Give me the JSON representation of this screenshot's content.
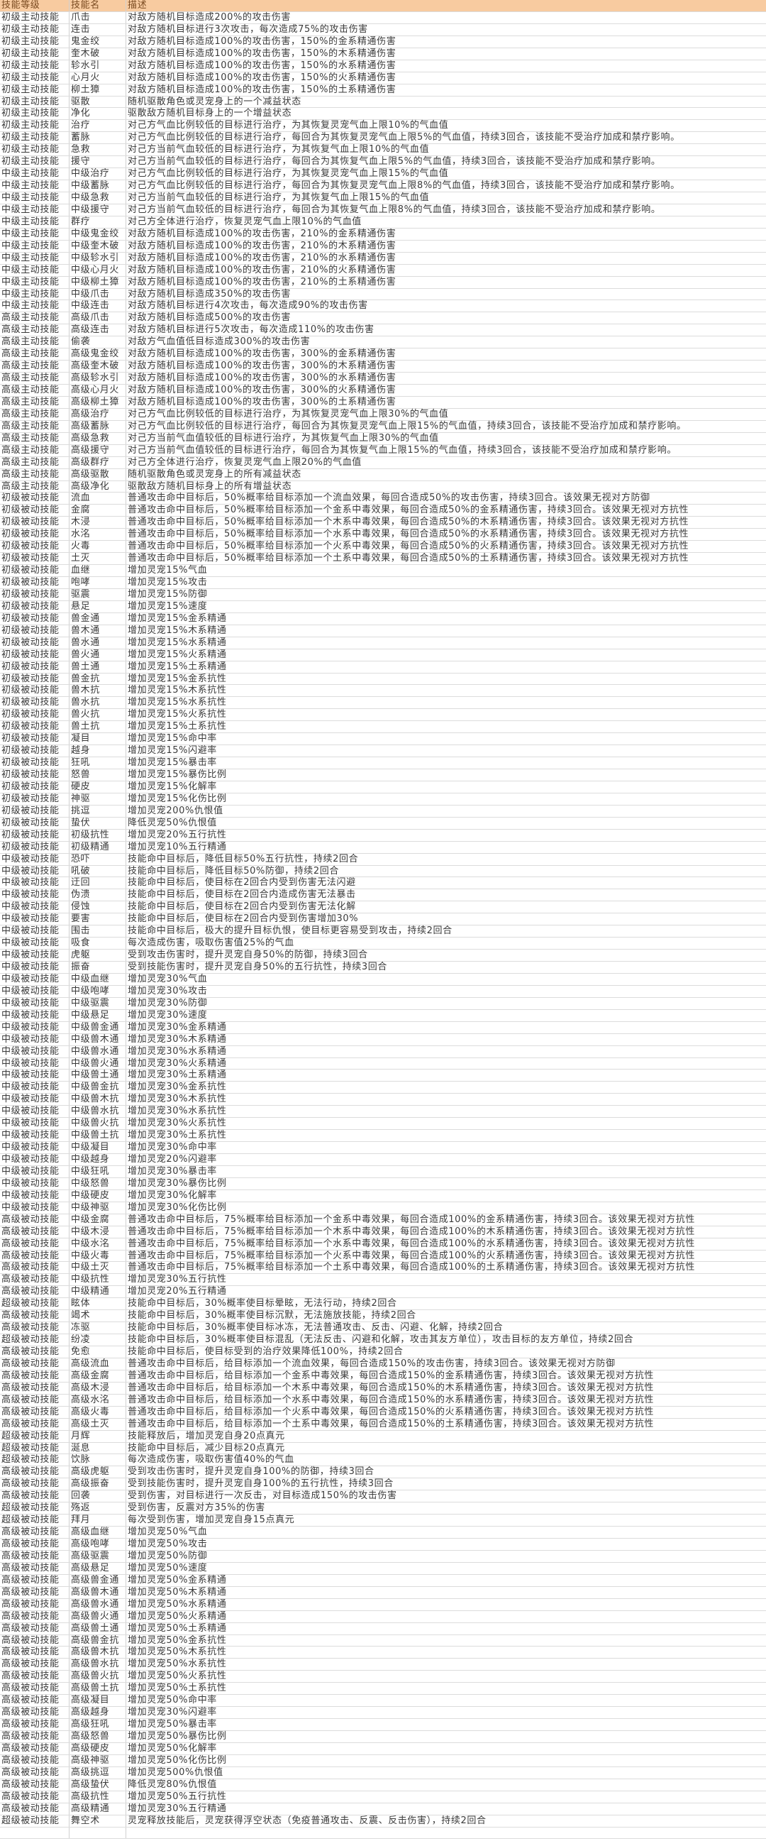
{
  "header": {
    "level": "技能等级",
    "name": "技能名",
    "desc": "描述"
  },
  "colors": {
    "header_bg": "#f8cba0",
    "grid": "#dcdcdc"
  },
  "rows": [
    [
      "初级主动技能",
      "爪击",
      "对敌方随机目标造成200%的攻击伤害"
    ],
    [
      "初级主动技能",
      "连击",
      "对敌方随机目标进行3次攻击，每次造成75%的攻击伤害"
    ],
    [
      "初级主动技能",
      "鬼金绞",
      "对敌方随机目标造成100%的攻击伤害，150%的金系精通伤害"
    ],
    [
      "初级主动技能",
      "奎木破",
      "对敌方随机目标造成100%的攻击伤害，150%的木系精通伤害"
    ],
    [
      "初级主动技能",
      "轸水引",
      "对敌方随机目标造成100%的攻击伤害，150%的水系精通伤害"
    ],
    [
      "初级主动技能",
      "心月火",
      "对敌方随机目标造成100%的攻击伤害，150%的火系精通伤害"
    ],
    [
      "初级主动技能",
      "柳土獐",
      "对敌方随机目标造成100%的攻击伤害，150%的土系精通伤害"
    ],
    [
      "初级主动技能",
      "驱散",
      "随机驱散角色或灵宠身上的一个减益状态"
    ],
    [
      "初级主动技能",
      "净化",
      "驱散敌方随机目标身上的一个增益状态"
    ],
    [
      "初级主动技能",
      "治疗",
      "对己方气血比例较低的目标进行治疗，为其恢复灵宠气血上限10%的气血值"
    ],
    [
      "初级主动技能",
      "蓄脉",
      "对己方气血比例较低的目标进行治疗，每回合为其恢复灵宠气血上限5%的气血值，持续3回合，该技能不受治疗加成和禁疗影响。"
    ],
    [
      "初级主动技能",
      "急救",
      "对己方当前气血较低的目标进行治疗，为其恢复气血上限10%的气血值"
    ],
    [
      "初级主动技能",
      "援守",
      "对己方当前气血较低的目标进行治疗，每回合为其恢复气血上限5%的气血值，持续3回合，该技能不受治疗加成和禁疗影响。"
    ],
    [
      "中级主动技能",
      "中级治疗",
      "对己方气血比例较低的目标进行治疗，为其恢复灵宠气血上限15%的气血值"
    ],
    [
      "中级主动技能",
      "中级蓄脉",
      "对己方气血比例较低的目标进行治疗，每回合为其恢复灵宠气血上限8%的气血值，持续3回合，该技能不受治疗加成和禁疗影响。"
    ],
    [
      "中级主动技能",
      "中级急救",
      "对己方当前气血较低的目标进行治疗，为其恢复气血上限15%的气血值"
    ],
    [
      "中级主动技能",
      "中级援守",
      "对己方当前气血较低的目标进行治疗，每回合为其恢复气血上限8%的气血值，持续3回合，该技能不受治疗加成和禁疗影响。"
    ],
    [
      "中级主动技能",
      "群疗",
      "对己方全体进行治疗，恢复灵宠气血上限10%的气血值"
    ],
    [
      "中级主动技能",
      "中级鬼金绞",
      "对敌方随机目标造成100%的攻击伤害，210%的金系精通伤害"
    ],
    [
      "中级主动技能",
      "中级奎木破",
      "对敌方随机目标造成100%的攻击伤害，210%的木系精通伤害"
    ],
    [
      "中级主动技能",
      "中级轸水引",
      "对敌方随机目标造成100%的攻击伤害，210%的水系精通伤害"
    ],
    [
      "中级主动技能",
      "中级心月火",
      "对敌方随机目标造成100%的攻击伤害，210%的火系精通伤害"
    ],
    [
      "中级主动技能",
      "中级柳土獐",
      "对敌方随机目标造成100%的攻击伤害，210%的土系精通伤害"
    ],
    [
      "中级主动技能",
      "中级爪击",
      "对敌方随机目标造成350%的攻击伤害"
    ],
    [
      "中级主动技能",
      "中级连击",
      "对敌方随机目标进行4次攻击，每次造成90%的攻击伤害"
    ],
    [
      "高级主动技能",
      "高级爪击",
      "对敌方随机目标造成500%的攻击伤害"
    ],
    [
      "高级主动技能",
      "高级连击",
      "对敌方随机目标进行5次攻击，每次造成110%的攻击伤害"
    ],
    [
      "高级主动技能",
      "偷袭",
      "对敌方气血值低目标造成300%的攻击伤害"
    ],
    [
      "高级主动技能",
      "高级鬼金绞",
      "对敌方随机目标造成100%的攻击伤害，300%的金系精通伤害"
    ],
    [
      "高级主动技能",
      "高级奎木破",
      "对敌方随机目标造成100%的攻击伤害，300%的木系精通伤害"
    ],
    [
      "高级主动技能",
      "高级轸水引",
      "对敌方随机目标造成100%的攻击伤害，300%的水系精通伤害"
    ],
    [
      "高级主动技能",
      "高级心月火",
      "对敌方随机目标造成100%的攻击伤害，300%的火系精通伤害"
    ],
    [
      "高级主动技能",
      "高级柳土獐",
      "对敌方随机目标造成100%的攻击伤害，300%的土系精通伤害"
    ],
    [
      "高级主动技能",
      "高级治疗",
      "对己方气血比例较低的目标进行治疗，为其恢复灵宠气血上限30%的气血值"
    ],
    [
      "高级主动技能",
      "高级蓄脉",
      "对己方气血比例较低的目标进行治疗，每回合为其恢复灵宠气血上限15%的气血值，持续3回合，该技能不受治疗加成和禁疗影响。"
    ],
    [
      "高级主动技能",
      "高级急救",
      "对己方当前气血值较低的目标进行治疗，为其恢复气血上限30%的气血值"
    ],
    [
      "高级主动技能",
      "高级援守",
      "对己方当前气血值较低的目标进行治疗，每回合为其恢复气血上限15%的气血值，持续3回合，该技能不受治疗加成和禁疗影响。"
    ],
    [
      "高级主动技能",
      "高级群疗",
      "对己方全体进行治疗，恢复灵宠气血上限20%的气血值"
    ],
    [
      "高级主动技能",
      "高级驱散",
      "随机驱散角色或灵宠身上的所有减益状态"
    ],
    [
      "高级主动技能",
      "高级净化",
      "驱散敌方随机目标身上的所有增益状态"
    ],
    [
      "初级被动技能",
      "流血",
      "普通攻击命中目标后，50%概率给目标添加一个流血效果，每回合造成50%的攻击伤害，持续3回合。该效果无视对方防御"
    ],
    [
      "初级被动技能",
      "金腐",
      "普通攻击命中目标后，50%概率给目标添加一个金系中毒效果，每回合造成50%的金系精通伤害，持续3回合。该效果无视对方抗性"
    ],
    [
      "初级被动技能",
      "木浸",
      "普通攻击命中目标后，50%概率给目标添加一个木系中毒效果，每回合造成50%的木系精通伤害，持续3回合。该效果无视对方抗性"
    ],
    [
      "初级被动技能",
      "水洺",
      "普通攻击命中目标后，50%概率给目标添加一个水系中毒效果，每回合造成50%的水系精通伤害，持续3回合。该效果无视对方抗性"
    ],
    [
      "初级被动技能",
      "火毒",
      "普通攻击命中目标后，50%概率给目标添加一个火系中毒效果，每回合造成50%的火系精通伤害，持续3回合。该效果无视对方抗性"
    ],
    [
      "初级被动技能",
      "土灭",
      "普通攻击命中目标后，50%概率给目标添加一个土系中毒效果，每回合造成50%的土系精通伤害，持续3回合。该效果无视对方抗性"
    ],
    [
      "初级被动技能",
      "血继",
      "增加灵宠15%气血"
    ],
    [
      "初级被动技能",
      "咆哮",
      "增加灵宠15%攻击"
    ],
    [
      "初级被动技能",
      "驱震",
      "增加灵宠15%防御"
    ],
    [
      "初级被动技能",
      "悬足",
      "增加灵宠15%速度"
    ],
    [
      "初级被动技能",
      "兽金通",
      "增加灵宠15%金系精通"
    ],
    [
      "初级被动技能",
      "兽木通",
      "增加灵宠15%木系精通"
    ],
    [
      "初级被动技能",
      "兽水通",
      "增加灵宠15%水系精通"
    ],
    [
      "初级被动技能",
      "兽火通",
      "增加灵宠15%火系精通"
    ],
    [
      "初级被动技能",
      "兽土通",
      "增加灵宠15%土系精通"
    ],
    [
      "初级被动技能",
      "兽金抗",
      "增加灵宠15%金系抗性"
    ],
    [
      "初级被动技能",
      "兽木抗",
      "增加灵宠15%木系抗性"
    ],
    [
      "初级被动技能",
      "兽水抗",
      "增加灵宠15%水系抗性"
    ],
    [
      "初级被动技能",
      "兽火抗",
      "增加灵宠15%火系抗性"
    ],
    [
      "初级被动技能",
      "兽土抗",
      "增加灵宠15%土系抗性"
    ],
    [
      "初级被动技能",
      "凝目",
      "增加灵宠15%命中率"
    ],
    [
      "初级被动技能",
      "越身",
      "增加灵宠15%闪避率"
    ],
    [
      "初级被动技能",
      "狂吼",
      "增加灵宠15%暴击率"
    ],
    [
      "初级被动技能",
      "怒兽",
      "增加灵宠15%暴伤比例"
    ],
    [
      "初级被动技能",
      "硬皮",
      "增加灵宠15%化解率"
    ],
    [
      "初级被动技能",
      "神驱",
      "增加灵宠15%化伤比例"
    ],
    [
      "初级被动技能",
      "挑逗",
      "增加灵宠200%仇恨值"
    ],
    [
      "初级被动技能",
      "蛰伏",
      "降低灵宠50%仇恨值"
    ],
    [
      "初级被动技能",
      "初级抗性",
      "增加灵宠20%五行抗性"
    ],
    [
      "初级被动技能",
      "初级精通",
      "增加灵宠10%五行精通"
    ],
    [
      "中级被动技能",
      "恐吓",
      "技能命中目标后，降低目标50%五行抗性，持续2回合"
    ],
    [
      "中级被动技能",
      "吼破",
      "技能命中目标后，降低目标50%防御，持续2回合"
    ],
    [
      "中级被动技能",
      "迂回",
      "技能命中目标后，使目标在2回合内受到伤害无法闪避"
    ],
    [
      "中级被动技能",
      "伪溃",
      "技能命中目标后，使目标在2回合内造成伤害无法暴击"
    ],
    [
      "中级被动技能",
      "侵蚀",
      "技能命中目标后，使目标在2回合内受到伤害无法化解"
    ],
    [
      "中级被动技能",
      "要害",
      "技能命中目标后，使目标在2回合内受到伤害增加30%"
    ],
    [
      "中级被动技能",
      "围击",
      "技能命中目标后，极大的提升目标仇恨，使目标更容易受到攻击，持续2回合"
    ],
    [
      "中级被动技能",
      "吸食",
      "每次造成伤害，吸取伤害值25%的气血"
    ],
    [
      "中级被动技能",
      "虎躯",
      "受到攻击伤害时，提升灵宠自身50%的防御，持续3回合"
    ],
    [
      "中级被动技能",
      "振奋",
      "受到技能伤害时，提升灵宠自身50%的五行抗性，持续3回合"
    ],
    [
      "中级被动技能",
      "中级血继",
      "增加灵宠30%气血"
    ],
    [
      "中级被动技能",
      "中级咆哮",
      "增加灵宠30%攻击"
    ],
    [
      "中级被动技能",
      "中级驱震",
      "增加灵宠30%防御"
    ],
    [
      "中级被动技能",
      "中级悬足",
      "增加灵宠30%速度"
    ],
    [
      "中级被动技能",
      "中级兽金通",
      "增加灵宠30%金系精通"
    ],
    [
      "中级被动技能",
      "中级兽木通",
      "增加灵宠30%木系精通"
    ],
    [
      "中级被动技能",
      "中级兽水通",
      "增加灵宠30%水系精通"
    ],
    [
      "中级被动技能",
      "中级兽火通",
      "增加灵宠30%火系精通"
    ],
    [
      "中级被动技能",
      "中级兽土通",
      "增加灵宠30%土系精通"
    ],
    [
      "中级被动技能",
      "中级兽金抗",
      "增加灵宠30%金系抗性"
    ],
    [
      "中级被动技能",
      "中级兽木抗",
      "增加灵宠30%木系抗性"
    ],
    [
      "中级被动技能",
      "中级兽水抗",
      "增加灵宠30%水系抗性"
    ],
    [
      "中级被动技能",
      "中级兽火抗",
      "增加灵宠30%火系抗性"
    ],
    [
      "中级被动技能",
      "中级兽土抗",
      "增加灵宠30%土系抗性"
    ],
    [
      "中级被动技能",
      "中级凝目",
      "增加灵宠30%命中率"
    ],
    [
      "中级被动技能",
      "中级越身",
      "增加灵宠20%闪避率"
    ],
    [
      "中级被动技能",
      "中级狂吼",
      "增加灵宠30%暴击率"
    ],
    [
      "中级被动技能",
      "中级怒兽",
      "增加灵宠30%暴伤比例"
    ],
    [
      "中级被动技能",
      "中级硬皮",
      "增加灵宠30%化解率"
    ],
    [
      "中级被动技能",
      "中级神驱",
      "增加灵宠30%化伤比例"
    ],
    [
      "高级被动技能",
      "中级金腐",
      "普通攻击命中目标后，75%概率给目标添加一个金系中毒效果，每回合造成100%的金系精通伤害，持续3回合。该效果无视对方抗性"
    ],
    [
      "高级被动技能",
      "中级木浸",
      "普通攻击命中目标后，75%概率给目标添加一个木系中毒效果，每回合造成100%的木系精通伤害，持续3回合。该效果无视对方抗性"
    ],
    [
      "高级被动技能",
      "中级水洺",
      "普通攻击命中目标后，75%概率给目标添加一个水系中毒效果，每回合造成100%的水系精通伤害，持续3回合。该效果无视对方抗性"
    ],
    [
      "高级被动技能",
      "中级火毒",
      "普通攻击命中目标后，75%概率给目标添加一个火系中毒效果，每回合造成100%的火系精通伤害，持续3回合。该效果无视对方抗性"
    ],
    [
      "高级被动技能",
      "中级土灭",
      "普通攻击命中目标后，75%概率给目标添加一个土系中毒效果，每回合造成100%的土系精通伤害，持续3回合。该效果无视对方抗性"
    ],
    [
      "高级被动技能",
      "中级抗性",
      "增加灵宠30%五行抗性"
    ],
    [
      "高级被动技能",
      "中级精通",
      "增加灵宠20%五行精通"
    ],
    [
      "超级被动技能",
      "眩体",
      "技能命中目标后，30%概率使目标晕眩，无法行动，持续2回合"
    ],
    [
      "高级被动技能",
      "竭术",
      "技能命中目标后，30%概率使目标沉默，无法施放技能，持续2回合"
    ],
    [
      "高级被动技能",
      "冻驱",
      "技能命中目标后，30%概率使目标冰冻，无法普通攻击、反击、闪避、化解，持续2回合"
    ],
    [
      "超级被动技能",
      "纷凌",
      "技能命中目标后，30%概率使目标混乱（无法反击、闪避和化解，攻击其友方单位），攻击目标的友方单位，持续2回合"
    ],
    [
      "高级被动技能",
      "免愈",
      "技能命中目标后，使目标受到的治疗效果降低100%，持续2回合"
    ],
    [
      "高级被动技能",
      "高级流血",
      "普通攻击命中目标后，给目标添加一个流血效果，每回合造成150%的攻击伤害，持续3回合。该效果无视对方防御"
    ],
    [
      "高级被动技能",
      "高级金腐",
      "普通攻击命中目标后，给目标添加一个金系中毒效果，每回合造成150%的金系精通伤害，持续3回合。该效果无视对方抗性"
    ],
    [
      "高级被动技能",
      "高级木浸",
      "普通攻击命中目标后，给目标添加一个木系中毒效果，每回合造成150%的木系精通伤害，持续3回合。该效果无视对方抗性"
    ],
    [
      "高级被动技能",
      "高级水洺",
      "普通攻击命中目标后，给目标添加一个水系中毒效果，每回合造成150%的水系精通伤害，持续3回合。该效果无视对方抗性"
    ],
    [
      "高级被动技能",
      "高级火毒",
      "普通攻击命中目标后，给目标添加一个火系中毒效果，每回合造成150%的火系精通伤害，持续3回合。该效果无视对方抗性"
    ],
    [
      "高级被动技能",
      "高级土灭",
      "普通攻击命中目标后，给目标添加一个土系中毒效果，每回合造成150%的土系精通伤害，持续3回合。该效果无视对方抗性"
    ],
    [
      "超级被动技能",
      "月辉",
      "技能释放后，增加灵宠自身20点真元"
    ],
    [
      "超级被动技能",
      "涎息",
      "技能命中目标后，减少目标20点真元"
    ],
    [
      "超级被动技能",
      "饮脉",
      "每次造成伤害，吸取伤害值40%的气血"
    ],
    [
      "高级被动技能",
      "高级虎躯",
      "受到攻击伤害时，提升灵宠自身100%的防御，持续3回合"
    ],
    [
      "高级被动技能",
      "高级振奋",
      "受到技能伤害时，提升灵宠自身100%的五行抗性，持续3回合"
    ],
    [
      "高级被动技能",
      "回袭",
      "受到伤害，对目标进行一次反击，对目标造成150%的攻击伤害"
    ],
    [
      "超级被动技能",
      "殇返",
      "受到伤害，反震对方35%的伤害"
    ],
    [
      "超级被动技能",
      "拜月",
      "每次受到伤害，增加灵宠自身15点真元"
    ],
    [
      "高级被动技能",
      "高级血继",
      "增加灵宠50%气血"
    ],
    [
      "高级被动技能",
      "高级咆哮",
      "增加灵宠50%攻击"
    ],
    [
      "高级被动技能",
      "高级驱震",
      "增加灵宠50%防御"
    ],
    [
      "高级被动技能",
      "高级悬足",
      "增加灵宠50%速度"
    ],
    [
      "高级被动技能",
      "高级兽金通",
      "增加灵宠50%金系精通"
    ],
    [
      "高级被动技能",
      "高级兽木通",
      "增加灵宠50%木系精通"
    ],
    [
      "高级被动技能",
      "高级兽水通",
      "增加灵宠50%水系精通"
    ],
    [
      "高级被动技能",
      "高级兽火通",
      "增加灵宠50%火系精通"
    ],
    [
      "高级被动技能",
      "高级兽土通",
      "增加灵宠50%土系精通"
    ],
    [
      "高级被动技能",
      "高级兽金抗",
      "增加灵宠50%金系抗性"
    ],
    [
      "高级被动技能",
      "高级兽木抗",
      "增加灵宠50%木系抗性"
    ],
    [
      "高级被动技能",
      "高级兽水抗",
      "增加灵宠50%水系抗性"
    ],
    [
      "高级被动技能",
      "高级兽火抗",
      "增加灵宠50%火系抗性"
    ],
    [
      "高级被动技能",
      "高级兽土抗",
      "增加灵宠50%土系抗性"
    ],
    [
      "高级被动技能",
      "高级凝目",
      "增加灵宠50%命中率"
    ],
    [
      "高级被动技能",
      "高级越身",
      "增加灵宠30%闪避率"
    ],
    [
      "高级被动技能",
      "高级狂吼",
      "增加灵宠50%暴击率"
    ],
    [
      "高级被动技能",
      "高级怒兽",
      "增加灵宠50%暴伤比例"
    ],
    [
      "高级被动技能",
      "高级硬皮",
      "增加灵宠50%化解率"
    ],
    [
      "高级被动技能",
      "高级神驱",
      "增加灵宠50%化伤比例"
    ],
    [
      "高级被动技能",
      "高级挑逗",
      "增加灵宠500%仇恨值"
    ],
    [
      "高级被动技能",
      "高级蛰伏",
      "降低灵宠80%仇恨值"
    ],
    [
      "高级被动技能",
      "高级抗性",
      "增加灵宠50%五行抗性"
    ],
    [
      "高级被动技能",
      "高级精通",
      "增加灵宠30%五行精通"
    ],
    [
      "超级被动技能",
      "舞空术",
      "灵宠释放技能后，灵宠获得浮空状态（免疫普通攻击、反震、反击伤害），持续2回合"
    ],
    [
      "",
      "",
      ""
    ]
  ]
}
